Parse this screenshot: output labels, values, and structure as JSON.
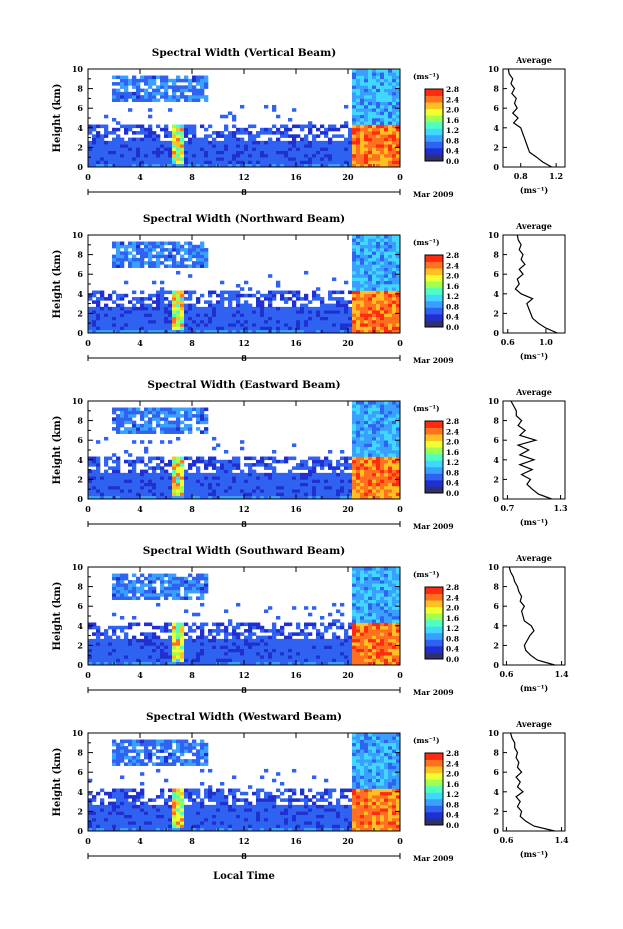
{
  "figure": {
    "xlabel": "Local Time",
    "date_label": "Mar 2009",
    "day_label": "8",
    "colorbar_unit": "(ms⁻¹)",
    "colorbar_ticks": [
      "0.0",
      "0.4",
      "0.8",
      "1.2",
      "1.6",
      "2.0",
      "2.4",
      "2.8"
    ],
    "colors": {
      "scale": [
        "#30306a",
        "#2030d0",
        "#2f62f0",
        "#3aa0ff",
        "#40d8ff",
        "#50ffc0",
        "#a0ff50",
        "#f0ff30",
        "#ffc020",
        "#ff7020",
        "#ff2a10"
      ]
    }
  },
  "chart_data": [
    {
      "type": "heatmap",
      "title": "Spectral Width (Vertical Beam)",
      "ylabel": "Height (km)",
      "x_ticks": [
        "0",
        "4",
        "8",
        "12",
        "16",
        "20",
        "0"
      ],
      "xlim": [
        0,
        24
      ],
      "y_ticks": [
        "0",
        "2",
        "4",
        "6",
        "8",
        "10"
      ],
      "ylim": [
        0,
        10
      ],
      "colorbar": {
        "unit": "(ms⁻¹)",
        "range": [
          0.0,
          2.8
        ]
      },
      "profile": {
        "title": "Average",
        "xlabel": "(ms⁻¹)",
        "x_ticks": [
          "0.8",
          "1.2"
        ],
        "xlim": [
          0.6,
          1.3
        ],
        "heights": [
          0,
          0.5,
          1,
          1.5,
          2,
          2.5,
          3,
          3.5,
          4,
          4.5,
          5,
          5.5,
          6,
          6.5,
          7,
          7.5,
          8,
          8.5,
          9,
          9.5,
          10
        ],
        "values": [
          1.15,
          1.05,
          0.98,
          0.9,
          0.88,
          0.86,
          0.84,
          0.82,
          0.8,
          0.72,
          0.77,
          0.71,
          0.76,
          0.73,
          0.75,
          0.7,
          0.73,
          0.69,
          0.71,
          0.67,
          0.66
        ]
      }
    },
    {
      "type": "heatmap",
      "title": "Spectral Width (Northward Beam)",
      "ylabel": "Height (km)",
      "x_ticks": [
        "0",
        "4",
        "8",
        "12",
        "16",
        "20",
        "0"
      ],
      "xlim": [
        0,
        24
      ],
      "y_ticks": [
        "0",
        "2",
        "4",
        "6",
        "8",
        "10"
      ],
      "ylim": [
        0,
        10
      ],
      "colorbar": {
        "unit": "(ms⁻¹)",
        "range": [
          0.0,
          2.8
        ]
      },
      "profile": {
        "title": "Average",
        "xlabel": "(ms⁻¹)",
        "x_ticks": [
          "0.6",
          "1.0"
        ],
        "xlim": [
          0.55,
          1.2
        ],
        "heights": [
          0,
          0.5,
          1,
          1.5,
          2,
          2.5,
          3,
          3.5,
          4,
          4.5,
          5,
          5.5,
          6,
          6.5,
          7,
          7.5,
          8,
          8.5,
          9,
          9.5,
          10
        ],
        "values": [
          1.12,
          1.0,
          0.92,
          0.86,
          0.84,
          0.82,
          0.8,
          0.86,
          0.74,
          0.68,
          0.72,
          0.7,
          0.76,
          0.72,
          0.78,
          0.74,
          0.76,
          0.72,
          0.74,
          0.71,
          0.7
        ]
      }
    },
    {
      "type": "heatmap",
      "title": "Spectral Width (Eastward Beam)",
      "ylabel": "Height (km)",
      "x_ticks": [
        "0",
        "4",
        "8",
        "12",
        "16",
        "20",
        "0"
      ],
      "xlim": [
        0,
        24
      ],
      "y_ticks": [
        "0",
        "2",
        "4",
        "6",
        "8",
        "10"
      ],
      "ylim": [
        0,
        10
      ],
      "colorbar": {
        "unit": "(ms⁻¹)",
        "range": [
          0.0,
          2.8
        ]
      },
      "profile": {
        "title": "Average",
        "xlabel": "(ms⁻¹)",
        "x_ticks": [
          "0.7",
          "1.3"
        ],
        "xlim": [
          0.65,
          1.35
        ],
        "heights": [
          0,
          0.5,
          1,
          1.5,
          2,
          2.5,
          3,
          3.5,
          4,
          4.5,
          5,
          5.5,
          6,
          6.5,
          7,
          7.5,
          8,
          8.5,
          9,
          9.5,
          10
        ],
        "values": [
          1.2,
          1.05,
          0.98,
          0.92,
          0.96,
          0.86,
          0.98,
          0.84,
          1.0,
          0.84,
          0.94,
          0.82,
          1.02,
          0.84,
          0.9,
          0.82,
          0.86,
          0.8,
          0.8,
          0.77,
          0.74
        ]
      }
    },
    {
      "type": "heatmap",
      "title": "Spectral Width (Southward Beam)",
      "ylabel": "Height (km)",
      "x_ticks": [
        "0",
        "4",
        "8",
        "12",
        "16",
        "20",
        "0"
      ],
      "xlim": [
        0,
        24
      ],
      "y_ticks": [
        "0",
        "2",
        "4",
        "6",
        "8",
        "10"
      ],
      "ylim": [
        0,
        10
      ],
      "colorbar": {
        "unit": "(ms⁻¹)",
        "range": [
          0.0,
          2.8
        ]
      },
      "profile": {
        "title": "Average",
        "xlabel": "(ms⁻¹)",
        "x_ticks": [
          "0.6",
          "1.4"
        ],
        "xlim": [
          0.55,
          1.45
        ],
        "heights": [
          0,
          0.5,
          1,
          1.5,
          2,
          2.5,
          3,
          3.5,
          4,
          4.5,
          5,
          5.5,
          6,
          6.5,
          7,
          7.5,
          8,
          8.5,
          9,
          9.5,
          10
        ],
        "values": [
          1.3,
          1.05,
          0.95,
          0.88,
          0.86,
          0.9,
          0.94,
          1.0,
          0.96,
          0.86,
          0.84,
          0.82,
          0.86,
          0.8,
          0.82,
          0.78,
          0.76,
          0.72,
          0.7,
          0.66,
          0.64
        ]
      }
    },
    {
      "type": "heatmap",
      "title": "Spectral Width (Westward Beam)",
      "ylabel": "Height (km)",
      "x_ticks": [
        "0",
        "4",
        "8",
        "12",
        "16",
        "20",
        "0"
      ],
      "xlim": [
        0,
        24
      ],
      "y_ticks": [
        "0",
        "2",
        "4",
        "6",
        "8",
        "10"
      ],
      "ylim": [
        0,
        10
      ],
      "colorbar": {
        "unit": "(ms⁻¹)",
        "range": [
          0.0,
          2.8
        ]
      },
      "profile": {
        "title": "Average",
        "xlabel": "(ms⁻¹)",
        "x_ticks": [
          "0.6",
          "1.4"
        ],
        "xlim": [
          0.55,
          1.45
        ],
        "heights": [
          0,
          0.5,
          1,
          1.5,
          2,
          2.5,
          3,
          3.5,
          4,
          4.5,
          5,
          5.5,
          6,
          6.5,
          7,
          7.5,
          8,
          8.5,
          9,
          9.5,
          10
        ],
        "values": [
          1.3,
          1.0,
          0.88,
          0.8,
          0.82,
          0.76,
          0.8,
          0.74,
          0.84,
          0.76,
          0.8,
          0.74,
          0.82,
          0.76,
          0.78,
          0.74,
          0.76,
          0.72,
          0.72,
          0.68,
          0.66
        ]
      }
    }
  ]
}
